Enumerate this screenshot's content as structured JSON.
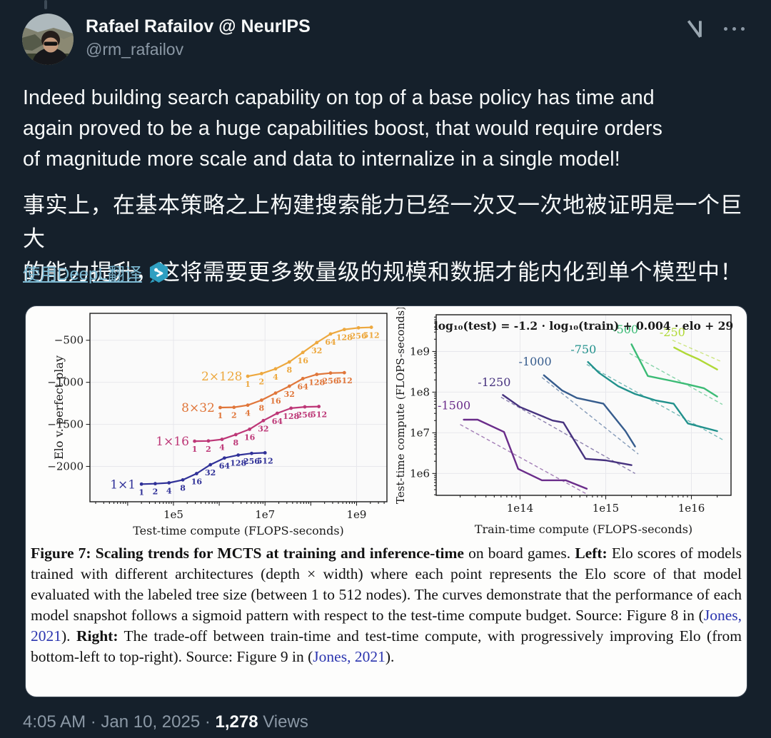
{
  "header": {
    "name": "Rafael Rafailov @ NeurIPS",
    "handle": "@rm_rafailov"
  },
  "tweet": {
    "text_en": "Indeed building search capability on top of a base policy has time and\nagain proved to be a huge capabilities boost, that would require orders\nof magnitude more scale and data to internalize in a single model!",
    "text_zh": "事实上，在基本策略之上构建搜索能力已经一次又一次地被证明是一个巨大\n的能力提升，这将需要更多数量级的规模和数据才能内化到单个模型中！",
    "translate_link": "使用DeepL翻译"
  },
  "figure": {
    "caption_segments": [
      {
        "text": "Figure 7: Scaling trends for MCTS at training and inference-time",
        "style": "bold"
      },
      {
        "text": " on board games. ",
        "style": "normal"
      },
      {
        "text": "Left:",
        "style": "bold"
      },
      {
        "text": " Elo scores of models trained with different architectures (depth × width) where each point represents the Elo score of that model evaluated with the labeled tree size (between 1 to 512 nodes). The curves demonstrate that the performance of each model snapshot follows a sigmoid pattern with respect to the test-time compute budget. Source: Figure 8 in (",
        "style": "normal"
      },
      {
        "text": "Jones, 2021",
        "style": "link"
      },
      {
        "text": "). ",
        "style": "normal"
      },
      {
        "text": "Right:",
        "style": "bold"
      },
      {
        "text": " The trade-off between train-time and test-time compute, with progressively improving Elo (from bottom-left to top-right). Source: Figure 9 in (",
        "style": "normal"
      },
      {
        "text": "Jones, 2021",
        "style": "link"
      },
      {
        "text": ").",
        "style": "normal"
      }
    ]
  },
  "footer": {
    "timestamp_prefix": "4:05 AM · Jan 10, 2025 · ",
    "views_count": "1,278",
    "views_label": " Views"
  },
  "colors": {
    "background": "#15202b",
    "text_primary": "#f7f9f9",
    "text_secondary": "#8b98a5",
    "link": "#7db9d2",
    "caption_link": "#2b35af",
    "card_bg": "#fdfdfc"
  },
  "chart_data": [
    {
      "type": "line",
      "title": "",
      "xlabel": "Test-time compute (FLOPS-seconds)",
      "ylabel": "Elo v. perfect play",
      "xscale": "log",
      "yscale": "linear",
      "xlim": [
        1500,
        4600000000.0
      ],
      "ylim": [
        -2420,
        -180
      ],
      "xtick_vals": [
        100000.0,
        10000000.0,
        1000000000.0
      ],
      "xtick_labels": [
        "1e5",
        "1e7",
        "1e9"
      ],
      "ytick_vals": [
        -500,
        -1000,
        -1500,
        -2000
      ],
      "ytick_labels": [
        "−500",
        "−1000",
        "−1500",
        "−2000"
      ],
      "grid": true,
      "point_labels": [
        "1",
        "2",
        "4",
        "8",
        "16",
        "32",
        "64",
        "128",
        "256",
        "512"
      ],
      "series": [
        {
          "name": "1×1",
          "color": "#303198",
          "label_x": 15000.0,
          "label_y": -2210,
          "x": [
            20000.0,
            40000.0,
            80000.0,
            160000.0,
            320000.0,
            640000.0,
            1300000.0,
            2600000.0,
            5100000.0,
            10000000.0
          ],
          "y": [
            -2210,
            -2205,
            -2195,
            -2160,
            -2085,
            -1980,
            -1900,
            -1865,
            -1845,
            -1838
          ]
        },
        {
          "name": "1×16",
          "color": "#bd3777",
          "label_x": 220000.0,
          "label_y": -1700,
          "x": [
            290000.0,
            580000.0,
            1150000.0,
            2300000.0,
            4600000.0,
            9200000.0,
            18500000.0,
            37000000.0,
            74000000.0,
            150000000.0
          ],
          "y": [
            -1700,
            -1697,
            -1678,
            -1622,
            -1558,
            -1455,
            -1368,
            -1308,
            -1292,
            -1288
          ]
        },
        {
          "name": "8×32",
          "color": "#e0763a",
          "label_x": 800000.0,
          "label_y": -1300,
          "x": [
            1050000.0,
            2100000.0,
            4200000.0,
            8400000.0,
            17000000.0,
            34000000.0,
            67000000.0,
            135000000.0,
            270000000.0,
            540000000.0
          ],
          "y": [
            -1300,
            -1297,
            -1272,
            -1212,
            -1128,
            -1046,
            -956,
            -906,
            -890,
            -886
          ]
        },
        {
          "name": "2×128",
          "color": "#eda83e",
          "label_x": 3200000.0,
          "label_y": -928,
          "x": [
            4200000.0,
            8400000.0,
            17000000.0,
            34000000.0,
            67000000.0,
            135000000.0,
            270000000.0,
            540000000.0,
            1100000000.0,
            2100000000.0
          ],
          "y": [
            -928,
            -896,
            -840,
            -758,
            -645,
            -528,
            -425,
            -372,
            -352,
            -346
          ]
        }
      ]
    },
    {
      "type": "line",
      "title": "log₁₀(test) = -1.2 · log₁₀(train) + 0.004 · elo + 29",
      "xlabel": "Train-time compute (FLOPS-seconds)",
      "ylabel": "Test-time compute (FLOPS-seconds)",
      "xscale": "log",
      "yscale": "log",
      "xlim": [
        10500000000000.0,
        2.9e+16
      ],
      "ylim": [
        290000.0,
        8000000000.0
      ],
      "xtick_vals": [
        100000000000000.0,
        1000000000000000.0,
        1e+16
      ],
      "xtick_labels": [
        "1e14",
        "1e15",
        "1e16"
      ],
      "ytick_vals": [
        1000000.0,
        10000000.0,
        100000000.0,
        1000000000.0
      ],
      "ytick_labels": [
        "1e6",
        "1e7",
        "1e8",
        "1e9"
      ],
      "grid": true,
      "series": [
        {
          "name": "-1500",
          "color": "#6a2c8a",
          "label_x": 17000000000000.0,
          "label_y": 38000000.0,
          "x": [
            22000000000000.0,
            32000000000000.0,
            65000000000000.0,
            95000000000000.0,
            180000000000000.0,
            340000000000000.0,
            600000000000000.0
          ],
          "y": [
            21000000.0,
            21000000.0,
            10500000.0,
            1300000.0,
            680000.0,
            680000.0,
            420000.0
          ],
          "dash": [
            [
              20000000000000.0,
              16000000.0
            ],
            [
              620000000000000.0,
              300000.0
            ]
          ]
        },
        {
          "name": "-1250",
          "color": "#46327e",
          "label_x": 50000000000000.0,
          "label_y": 140000000.0,
          "x": [
            63000000000000.0,
            100000000000000.0,
            240000000000000.0,
            320000000000000.0,
            580000000000000.0,
            1000000000000000.0,
            2000000000000000.0
          ],
          "y": [
            85000000.0,
            43000000.0,
            20000000.0,
            18000000.0,
            2300000.0,
            2100000.0,
            1600000.0
          ],
          "dash": [
            [
              60000000000000.0,
              75000000.0
            ],
            [
              2200000000000000.0,
              1000000.0
            ]
          ]
        },
        {
          "name": "-1000",
          "color": "#365c8d",
          "label_x": 150000000000000.0,
          "label_y": 450000000.0,
          "x": [
            190000000000000.0,
            310000000000000.0,
            460000000000000.0,
            940000000000000.0,
            1700000000000000.0,
            2200000000000000.0
          ],
          "y": [
            260000000.0,
            110000000.0,
            72000000.0,
            52000000.0,
            11000000.0,
            4600000.0
          ],
          "dash": [
            [
              180000000000000.0,
              230000000.0
            ],
            [
              2400000000000000.0,
              3000000.0
            ]
          ]
        },
        {
          "name": "-750",
          "color": "#21918c",
          "label_x": 550000000000000.0,
          "label_y": 900000000.0,
          "x": [
            620000000000000.0,
            830000000000000.0,
            1400000000000000.0,
            2200000000000000.0,
            3800000000000000.0,
            6200000000000000.0,
            9100000000000000.0,
            2e+16
          ],
          "y": [
            550000000.0,
            300000000.0,
            140000000.0,
            90000000.0,
            63000000.0,
            52000000.0,
            17000000.0,
            11000000.0
          ],
          "dash": [
            [
              600000000000000.0,
              480000000.0
            ],
            [
              2.4e+16,
              6500000.0
            ]
          ]
        },
        {
          "name": "-500",
          "color": "#3bbb75",
          "label_x": 1700000000000000.0,
          "label_y": 2800000000.0,
          "x": [
            2000000000000000.0,
            3100000000000000.0,
            5800000000000000.0,
            9100000000000000.0,
            1.4e+16,
            2e+16
          ],
          "y": [
            1500000000.0,
            250000000.0,
            190000000.0,
            155000000.0,
            125000000.0,
            78000000.0
          ],
          "dash": [
            [
              1900000000000000.0,
              900000000.0
            ],
            [
              2.3e+16,
              50000000.0
            ]
          ]
        },
        {
          "name": "-250",
          "color": "#b0d936",
          "label_x": 6000000000000000.0,
          "label_y": 2400000000.0,
          "x": [
            6300000000000000.0,
            8500000000000000.0,
            1.2e+16,
            2e+16
          ],
          "y": [
            1250000000.0,
            900000000.0,
            650000000.0,
            360000000.0
          ],
          "dash": [
            [
              6000000000000000.0,
              1900000000.0
            ],
            [
              2.3e+16,
              550000000.0
            ]
          ]
        }
      ]
    }
  ]
}
